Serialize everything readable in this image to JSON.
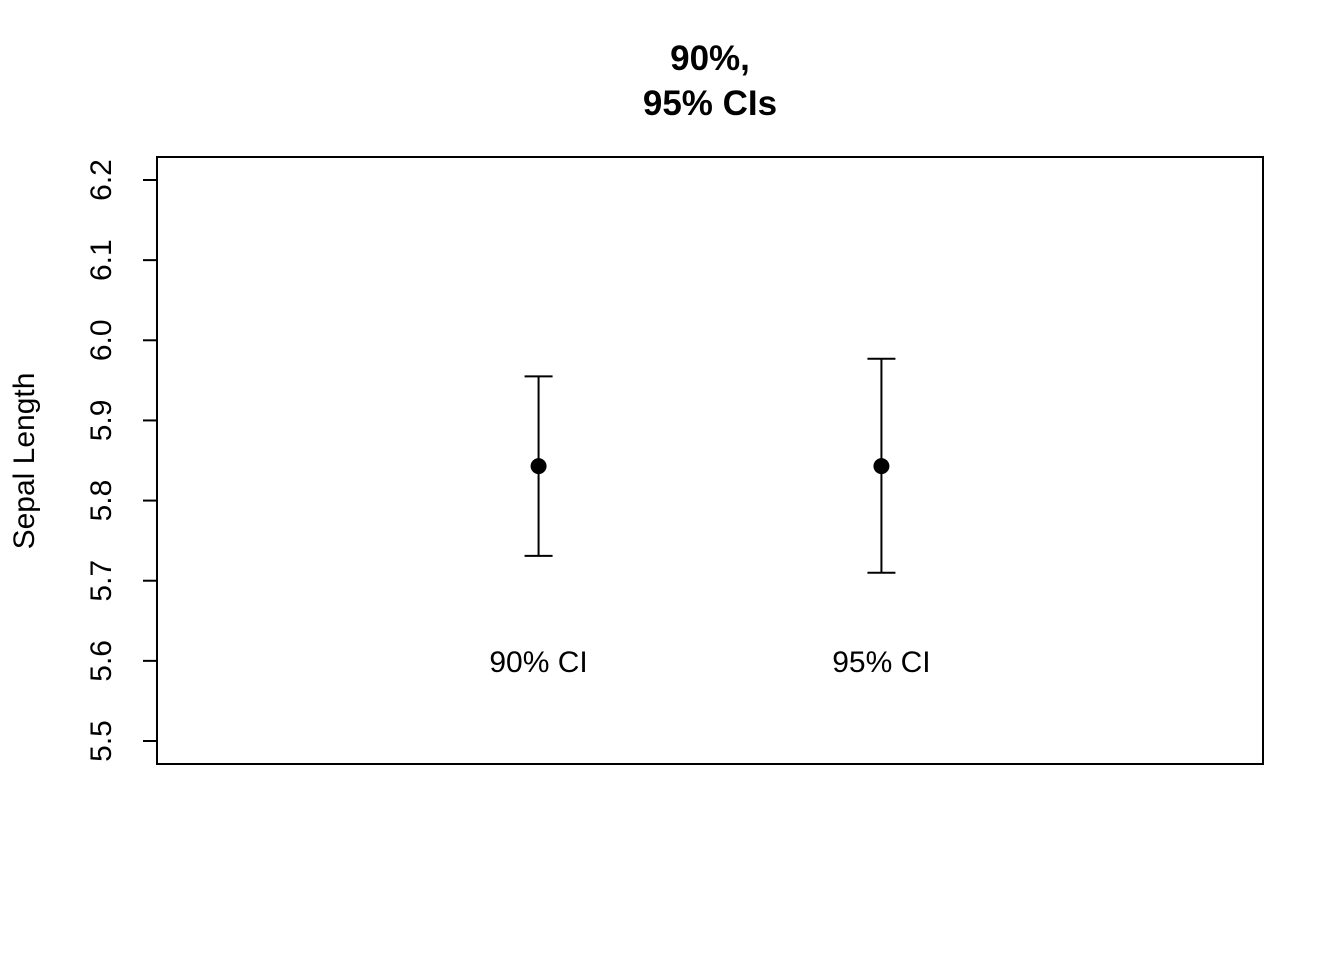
{
  "chart_data": {
    "type": "scatter",
    "title_lines": [
      "90%,",
      "95% CIs"
    ],
    "ylabel": "Sepal Length",
    "ylim": [
      5.5,
      6.2
    ],
    "yticks": [
      "5.5",
      "5.6",
      "5.7",
      "5.8",
      "5.9",
      "6.0",
      "6.1",
      "6.2"
    ],
    "xlim": [
      0,
      1
    ],
    "intervals": [
      {
        "label": "90% CI",
        "x": 0.345,
        "estimate": 5.843,
        "lower": 5.731,
        "upper": 5.955
      },
      {
        "label": "95% CI",
        "x": 0.655,
        "estimate": 5.843,
        "lower": 5.71,
        "upper": 5.977
      }
    ],
    "interval_label_y": 5.6,
    "grid": false,
    "legend": "none"
  }
}
